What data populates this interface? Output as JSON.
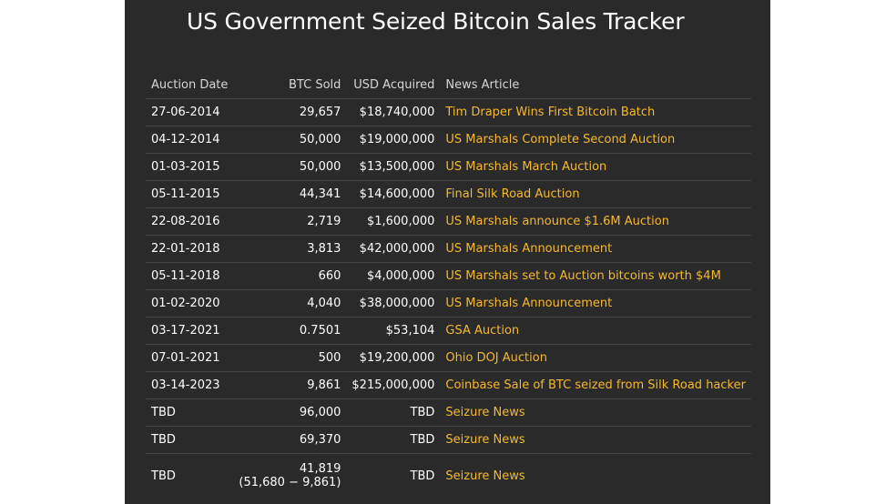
{
  "page": {
    "title": "US Government Seized Bitcoin Sales Tracker"
  },
  "colors": {
    "panel_background": "#2a2a2a",
    "link": "#f5b82e",
    "text": "#ffffff",
    "header_text": "#d6d6d6",
    "row_divider": "#444444"
  },
  "table": {
    "headers": {
      "date": "Auction Date",
      "btc": "BTC Sold",
      "usd": "USD Acquired",
      "news": "News Article"
    },
    "rows": [
      {
        "date": "27-06-2014",
        "btc": "29,657",
        "usd": "$18,740,000",
        "news": "Tim Draper Wins First Bitcoin Batch"
      },
      {
        "date": "04-12-2014",
        "btc": "50,000",
        "usd": "$19,000,000",
        "news": "US Marshals Complete Second Auction"
      },
      {
        "date": "01-03-2015",
        "btc": "50,000",
        "usd": "$13,500,000",
        "news": "US Marshals March Auction"
      },
      {
        "date": "05-11-2015",
        "btc": "44,341",
        "usd": "$14,600,000",
        "news": "Final Silk Road Auction"
      },
      {
        "date": "22-08-2016",
        "btc": "2,719",
        "usd": "$1,600,000",
        "news": "US Marshals announce $1.6M Auction"
      },
      {
        "date": "22-01-2018",
        "btc": "3,813",
        "usd": "$42,000,000",
        "news": "US Marshals Announcement"
      },
      {
        "date": "05-11-2018",
        "btc": "660",
        "usd": "$4,000,000",
        "news": "US Marshals set to Auction bitcoins worth $4M"
      },
      {
        "date": "01-02-2020",
        "btc": "4,040",
        "usd": "$38,000,000",
        "news": "US Marshals Announcement"
      },
      {
        "date": "03-17-2021",
        "btc": "0.7501",
        "usd": "$53,104",
        "news": "GSA Auction"
      },
      {
        "date": "07-01-2021",
        "btc": "500",
        "usd": "$19,200,000",
        "news": "Ohio DOJ Auction"
      },
      {
        "date": "03-14-2023",
        "btc": "9,861",
        "usd": "$215,000,000",
        "news": "Coinbase Sale of BTC seized from Silk Road hacker"
      },
      {
        "date": "TBD",
        "btc": "96,000",
        "usd": "TBD",
        "news": "Seizure News"
      },
      {
        "date": "TBD",
        "btc": "69,370",
        "usd": "TBD",
        "news": "Seizure News"
      },
      {
        "date": "TBD",
        "btc": "41,819",
        "btc_note": "(51,680 − 9,861)",
        "usd": "TBD",
        "news": "Seizure News"
      }
    ]
  }
}
